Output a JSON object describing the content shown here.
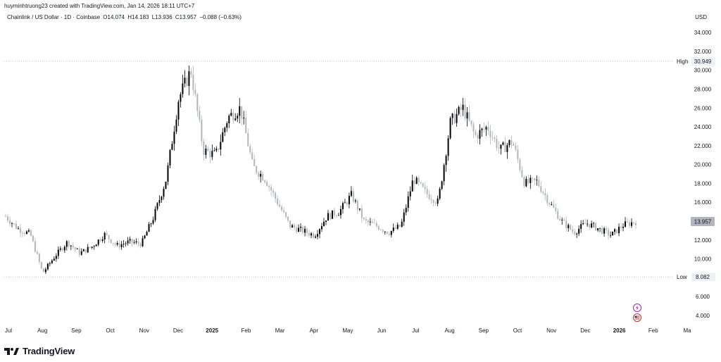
{
  "caption": "huyminhtruong23 created with TradingView.com, Jan 14, 2026 18:11 UTC+7",
  "legend": {
    "symbol": "Chainlink / US Dollar · 1D · Coinbase",
    "open": "O14.074",
    "high": "H14.183",
    "low": "L13.936",
    "close": "C13.957",
    "change": "−0.088 (−0.63%)"
  },
  "currency": "USD",
  "brand": "TradingView",
  "icons": {
    "lightning": "lightning-icon",
    "flag": "us-flag-icon",
    "logo": "tradingview-logo-icon"
  },
  "colors": {
    "up": "#000000",
    "down": "#b2b5be",
    "last_price_bg": "#b2b5be",
    "range_line": "#b2b5be"
  },
  "chart_data": {
    "type": "candlestick",
    "title": "Chainlink / US Dollar · 1D · Coinbase",
    "ylim": [
      2.5,
      35.8
    ],
    "yticks": [
      4,
      6,
      10,
      12,
      14,
      16,
      18,
      20,
      22,
      24,
      26,
      28,
      30,
      32,
      34
    ],
    "ytick_labels": [
      "4.000",
      "6.000",
      "10.000",
      "12.000",
      "14.000",
      "16.000",
      "18.000",
      "20.000",
      "22.000",
      "24.000",
      "26.000",
      "28.000",
      "30.000",
      "32.000",
      "34.000"
    ],
    "xtick_labels": [
      "Jul",
      "Aug",
      "Sep",
      "Oct",
      "Nov",
      "Dec",
      "2025",
      "Feb",
      "Mar",
      "Apr",
      "May",
      "Jun",
      "Jul",
      "Aug",
      "Sep",
      "Oct",
      "Nov",
      "Dec",
      "2026",
      "Feb",
      "Ma"
    ],
    "xtick_bold": [
      "2025",
      "2026"
    ],
    "high": {
      "label": "High",
      "value": 30.949
    },
    "low": {
      "label": "Low",
      "value": 8.082
    },
    "last_price": 13.957,
    "last_price_label": "13.957",
    "series": [
      {
        "name": "LINK/USD",
        "points": [
          [
            "Jul 2024",
            14.5
          ],
          [
            "mid Jul 2024",
            13.2
          ],
          [
            "Aug 2024",
            12.6
          ],
          [
            "early Aug 2024",
            8.5
          ],
          [
            "mid Aug 2024",
            10.3
          ],
          [
            "late Aug 2024",
            11.8
          ],
          [
            "Sep 2024",
            10.6
          ],
          [
            "mid Sep 2024",
            11.3
          ],
          [
            "Oct 2024",
            12.6
          ],
          [
            "mid Oct 2024",
            11.4
          ],
          [
            "late Oct 2024",
            11.8
          ],
          [
            "Nov 2024",
            11.6
          ],
          [
            "mid Nov 2024",
            14.5
          ],
          [
            "late Nov 2024",
            18.5
          ],
          [
            "early Dec 2024",
            27.0
          ],
          [
            "mid Dec 2024",
            30.0
          ],
          [
            "late Dec 2024",
            21.5
          ],
          [
            "2025",
            21.0
          ],
          [
            "mid Jan 2025",
            25.0
          ],
          [
            "late Jan 2025",
            26.0
          ],
          [
            "Feb 2025",
            19.8
          ],
          [
            "mid Feb 2025",
            18.5
          ],
          [
            "Mar 2025",
            16.0
          ],
          [
            "mid Mar 2025",
            13.5
          ],
          [
            "Apr 2025",
            13.0
          ],
          [
            "mid Apr 2025",
            12.5
          ],
          [
            "late Apr 2025",
            14.5
          ],
          [
            "May 2025",
            15.0
          ],
          [
            "mid May 2025",
            16.8
          ],
          [
            "Jun 2025",
            14.0
          ],
          [
            "mid Jun 2025",
            13.5
          ],
          [
            "late Jun 2025",
            12.8
          ],
          [
            "Jul 2025",
            13.5
          ],
          [
            "mid Jul 2025",
            18.5
          ],
          [
            "late Jul 2025",
            17.0
          ],
          [
            "Aug 2025",
            16.0
          ],
          [
            "mid Aug 2025",
            24.5
          ],
          [
            "late Aug 2025",
            26.0
          ],
          [
            "Sep 2025",
            23.0
          ],
          [
            "mid Sep 2025",
            24.0
          ],
          [
            "late Sep 2025",
            21.5
          ],
          [
            "Oct 2025",
            22.5
          ],
          [
            "mid Oct 2025",
            18.0
          ],
          [
            "late Oct 2025",
            18.2
          ],
          [
            "Nov 2025",
            16.0
          ],
          [
            "mid Nov 2025",
            14.0
          ],
          [
            "late Nov 2025",
            12.8
          ],
          [
            "Dec 2025",
            13.8
          ],
          [
            "mid Dec 2025",
            13.2
          ],
          [
            "late Dec 2025",
            12.5
          ],
          [
            "2026",
            13.6
          ],
          [
            "mid Jan 2026",
            13.957
          ]
        ]
      }
    ]
  }
}
